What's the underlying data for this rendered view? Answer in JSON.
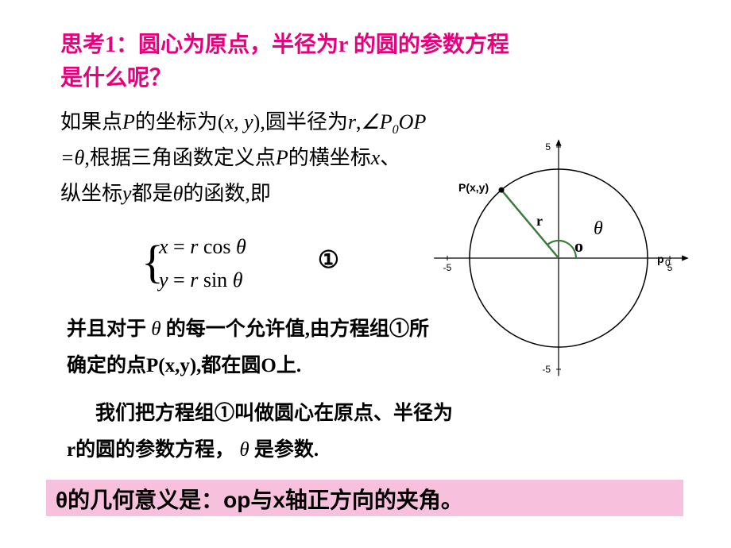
{
  "title_color": "#e6007e",
  "title_line1": "思考1：圆心为原点，半径为r 的圆的参数方程",
  "title_line2": "是什么呢？",
  "para1_l1_a": "如果点",
  "para1_l1_P": "P",
  "para1_l1_b": "的坐标为(",
  "para1_l1_xy": "x, y",
  "para1_l1_c": "),圆半径为",
  "para1_l1_r": "r",
  "para1_l1_d": ",",
  "para1_l1_ang": "∠",
  "para1_l1_P0OP": "P",
  "para1_l1_sub0": "0",
  "para1_l1_OP": "OP",
  "para1_l2_a": "=",
  "para1_l2_th": "θ",
  "para1_l2_b": ",根据三角函数定义点",
  "para1_l2_P": "P",
  "para1_l2_c": "的横坐标",
  "para1_l2_x": "x",
  "para1_l2_d": "、",
  "para1_l3_a": "纵坐标",
  "para1_l3_y": "y",
  "para1_l3_b": "都是",
  "para1_l3_th": "θ",
  "para1_l3_c": "的函数,即",
  "eq1_lhs": "x",
  "eq_eq": " = ",
  "eq1_r": "r ",
  "eq1_fn": "cos ",
  "eq_th": "θ",
  "eq2_lhs": "y",
  "eq2_r": "r ",
  "eq2_fn": "sin ",
  "circled_one": "①",
  "para2_l1_a": "并且对于 ",
  "para2_l1_th": "θ",
  "para2_l1_b": " 的每一个允许值,由方程组①所",
  "para2_l2": "确定的点P(x,y),都在圆O上.",
  "para3_l1": "我们把方程组①叫做圆心在原点、半径为",
  "para3_l2_a": "r的圆的参数方程，  ",
  "para3_l2_th": "θ",
  "para3_l2_b": " 是参数.",
  "highlight_text": "θ的几何意义是：op与x轴正方向的夹角。",
  "highlight_bg": "#f7c0dc",
  "diagram": {
    "axis_color": "#000000",
    "circle_color": "#000000",
    "radius_color": "#3a7b3a",
    "range": [
      -5,
      5
    ],
    "ticks": [
      -5,
      5
    ],
    "circle_r_units": 4,
    "P_angle_deg": 130,
    "P_label": "P(x,y)",
    "P0_label": "p",
    "P0_sub": "0",
    "O_label": "o",
    "theta_label": "θ",
    "r_label": "r"
  }
}
